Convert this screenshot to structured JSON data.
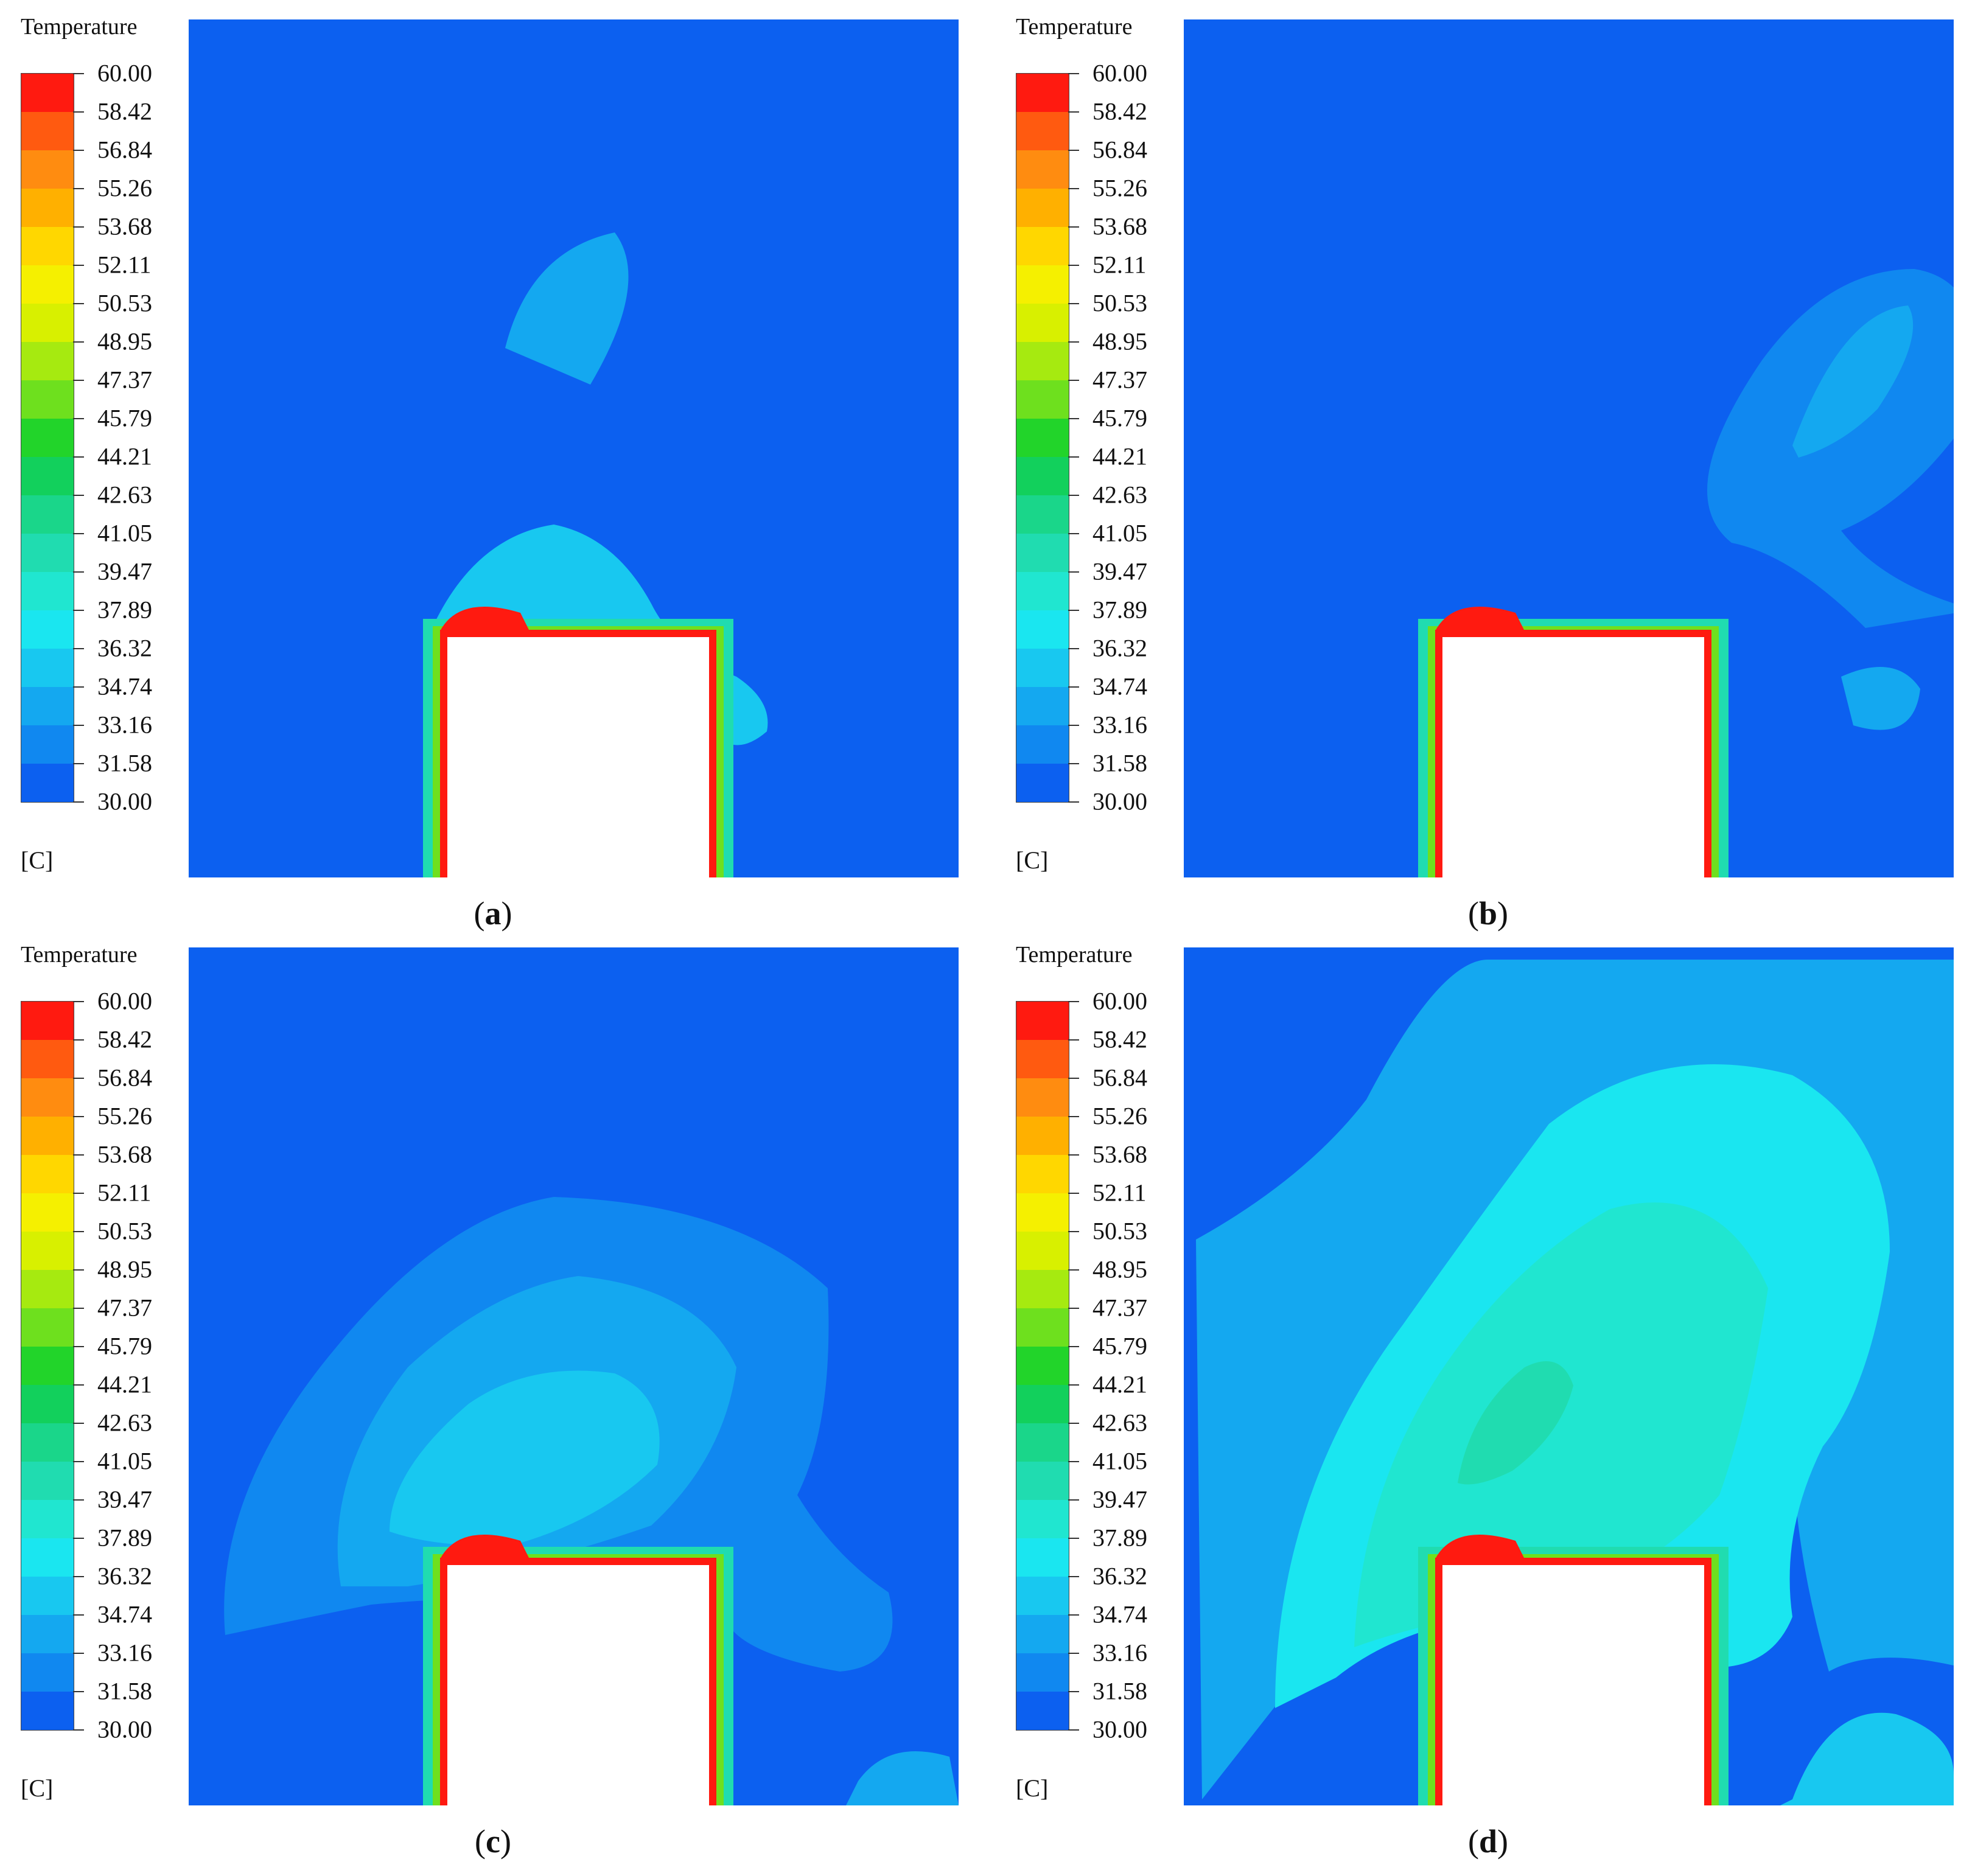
{
  "chart_data": [
    {
      "type": "heatmap",
      "panel": "(a)",
      "caption_letter": "a",
      "legend_title": "Temperature",
      "unit": "[C]",
      "color_levels": [
        "60.00",
        "58.42",
        "56.84",
        "55.26",
        "53.68",
        "52.11",
        "50.53",
        "48.95",
        "47.37",
        "45.79",
        "44.21",
        "42.63",
        "41.05",
        "39.47",
        "37.89",
        "36.32",
        "34.74",
        "33.16",
        "31.58",
        "30.00"
      ],
      "range": [
        30.0,
        60.0
      ],
      "hot_block_temperature": 60.0,
      "ambient_temperature": 30.0,
      "max_plume_temperature_approx": 36.3
    },
    {
      "type": "heatmap",
      "panel": "(b)",
      "caption_letter": "b",
      "legend_title": "Temperature",
      "unit": "[C]",
      "color_levels": [
        "60.00",
        "58.42",
        "56.84",
        "55.26",
        "53.68",
        "52.11",
        "50.53",
        "48.95",
        "47.37",
        "45.79",
        "44.21",
        "42.63",
        "41.05",
        "39.47",
        "37.89",
        "36.32",
        "34.74",
        "33.16",
        "31.58",
        "30.00"
      ],
      "range": [
        30.0,
        60.0
      ],
      "hot_block_temperature": 60.0,
      "ambient_temperature": 30.0,
      "max_plume_temperature_approx": 34.7
    },
    {
      "type": "heatmap",
      "panel": "(c)",
      "caption_letter": "c",
      "legend_title": "Temperature",
      "unit": "[C]",
      "color_levels": [
        "60.00",
        "58.42",
        "56.84",
        "55.26",
        "53.68",
        "52.11",
        "50.53",
        "48.95",
        "47.37",
        "45.79",
        "44.21",
        "42.63",
        "41.05",
        "39.47",
        "37.89",
        "36.32",
        "34.74",
        "33.16",
        "31.58",
        "30.00"
      ],
      "range": [
        30.0,
        60.0
      ],
      "hot_block_temperature": 60.0,
      "ambient_temperature": 30.0,
      "max_plume_temperature_approx": 36.3
    },
    {
      "type": "heatmap",
      "panel": "(d)",
      "caption_letter": "d",
      "legend_title": "Temperature",
      "unit": "[C]",
      "color_levels": [
        "60.00",
        "58.42",
        "56.84",
        "55.26",
        "53.68",
        "52.11",
        "50.53",
        "48.95",
        "47.37",
        "45.79",
        "44.21",
        "42.63",
        "41.05",
        "39.47",
        "37.89",
        "36.32",
        "34.74",
        "33.16",
        "31.58",
        "30.00"
      ],
      "range": [
        30.0,
        60.0
      ],
      "hot_block_temperature": 60.0,
      "ambient_temperature": 30.0,
      "max_plume_temperature_approx": 39.5
    }
  ],
  "colors": {
    "levels": [
      "#ff1a10",
      "#ff5a10",
      "#ff8c10",
      "#ffb000",
      "#ffd700",
      "#f5f000",
      "#d8f000",
      "#a6ea10",
      "#6ee01e",
      "#22d42a",
      "#12d05c",
      "#1ad68a",
      "#20dcb0",
      "#20e6d0",
      "#1ae6f0",
      "#18c8f0",
      "#14a8f0",
      "#1088f0",
      "#0c60f0",
      "#0a32f0"
    ],
    "background": "#0a32f0",
    "block": "#ffffff"
  }
}
